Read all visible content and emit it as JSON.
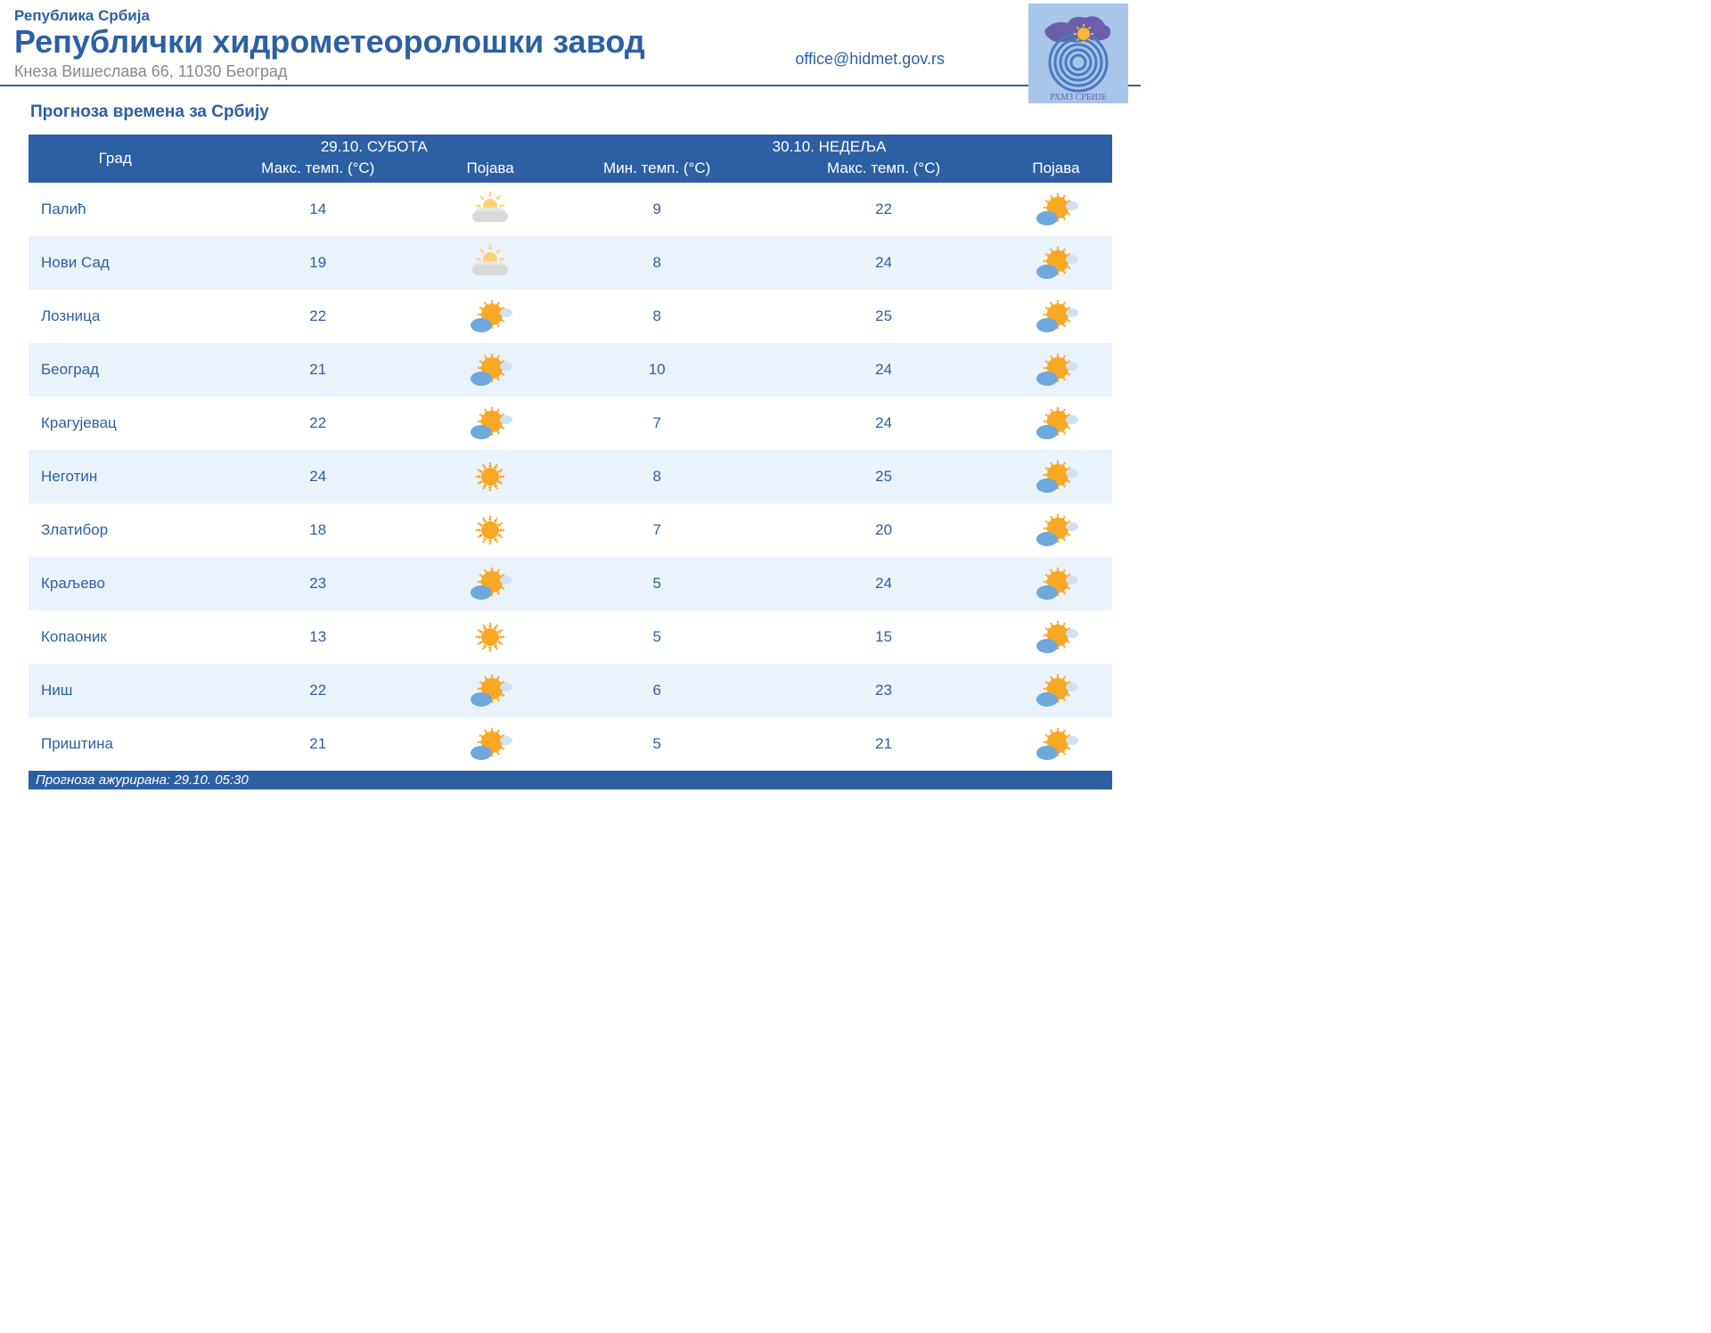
{
  "header": {
    "country": "Република Србија",
    "organization": "Републички хидрометеоролошки завод",
    "address": "Кнеза Вишеслава 66, 11030 Београд",
    "email": "office@hidmet.gov.rs"
  },
  "section_title": "Прогноза времена за Србију",
  "columns": {
    "city": "Град",
    "day1_date": "29.10. СУБОТА",
    "day2_date": "30.10. НЕДЕЉА",
    "max_temp": "Макс. темп. (°C)",
    "min_temp": "Мин. темп. (°C)",
    "phenomenon": "Појава"
  },
  "icons": {
    "sunny": "sunny",
    "fog": "fog",
    "partly": "partly"
  },
  "rows": [
    {
      "city": "Палић",
      "d1_max": "14",
      "d1_icon": "fog",
      "d2_min": "9",
      "d2_max": "22",
      "d2_icon": "partly"
    },
    {
      "city": "Нови Сад",
      "d1_max": "19",
      "d1_icon": "fog",
      "d2_min": "8",
      "d2_max": "24",
      "d2_icon": "partly"
    },
    {
      "city": "Лозница",
      "d1_max": "22",
      "d1_icon": "partly",
      "d2_min": "8",
      "d2_max": "25",
      "d2_icon": "partly"
    },
    {
      "city": "Београд",
      "d1_max": "21",
      "d1_icon": "partly",
      "d2_min": "10",
      "d2_max": "24",
      "d2_icon": "partly"
    },
    {
      "city": "Крагујевац",
      "d1_max": "22",
      "d1_icon": "partly",
      "d2_min": "7",
      "d2_max": "24",
      "d2_icon": "partly"
    },
    {
      "city": "Неготин",
      "d1_max": "24",
      "d1_icon": "sunny",
      "d2_min": "8",
      "d2_max": "25",
      "d2_icon": "partly"
    },
    {
      "city": "Златибор",
      "d1_max": "18",
      "d1_icon": "sunny",
      "d2_min": "7",
      "d2_max": "20",
      "d2_icon": "partly"
    },
    {
      "city": "Краљево",
      "d1_max": "23",
      "d1_icon": "partly",
      "d2_min": "5",
      "d2_max": "24",
      "d2_icon": "partly"
    },
    {
      "city": "Копаоник",
      "d1_max": "13",
      "d1_icon": "sunny",
      "d2_min": "5",
      "d2_max": "15",
      "d2_icon": "partly"
    },
    {
      "city": "Ниш",
      "d1_max": "22",
      "d1_icon": "partly",
      "d2_min": "6",
      "d2_max": "23",
      "d2_icon": "partly"
    },
    {
      "city": "Приштина",
      "d1_max": "21",
      "d1_icon": "partly",
      "d2_min": "5",
      "d2_max": "21",
      "d2_icon": "partly"
    }
  ],
  "footer": "Прогноза ажурирана:  29.10. 05:30",
  "colors": {
    "brand": "#2d5fa4",
    "row_alt": "#eaf2fb",
    "text_muted": "#888888"
  }
}
